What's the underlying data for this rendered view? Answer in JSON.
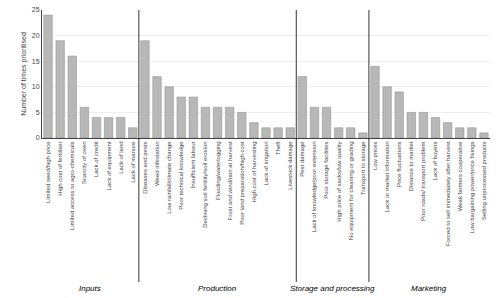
{
  "chart_data": {
    "type": "bar",
    "ylabel": "Number of times prioritised",
    "categories": [
      "Limited seed/high price",
      "High cost of fertiliser",
      "Limited access to agro-chemicals",
      "Scarcity of oxen",
      "Lack of credit",
      "Lack of equipment",
      "Lack of land",
      "Lack of manure",
      "Diseases and pests",
      "Weed infestation",
      "Low rainfall/climate change",
      "Poor technical knowledge",
      "Insufficient labour",
      "Declining soil fertility/soil erosion",
      "Flooding/waterlogging",
      "Frost and wind/rain at harvest",
      "Poor land preparation/high cost",
      "High cost of harvesting",
      "Lack of irrigation",
      "Theft",
      "Livestock damage",
      "Pest damage",
      "Lack of knowledge/poor extension",
      "Poor storage facilities",
      "High price of sacks/low quality",
      "No equipment for cleaning or grading",
      "Transport to storage",
      "Low prices",
      "Lack or market information",
      "Price fluctuations",
      "Distance to market",
      "Poor roads/ transport problem",
      "Lack of buyers",
      "Forced to sell immediately after harvest",
      "Weak farmers cooperative",
      "Low bargaining power/price fixings",
      "Selling unprocessed products"
    ],
    "values": [
      24,
      19,
      16,
      6,
      4,
      4,
      4,
      2,
      19,
      12,
      10,
      8,
      8,
      6,
      6,
      6,
      5,
      3,
      2,
      2,
      2,
      12,
      6,
      6,
      2,
      2,
      1,
      14,
      10,
      9,
      5,
      5,
      4,
      3,
      2,
      2,
      1
    ],
    "groups": [
      {
        "name": "Inputs",
        "start": 0,
        "end": 7
      },
      {
        "name": "Production",
        "start": 8,
        "end": 20
      },
      {
        "name": "Storage and processing",
        "start": 21,
        "end": 26
      },
      {
        "name": "Marketing",
        "start": 27,
        "end": 36
      }
    ],
    "color": "#b8b8b8",
    "ylim": [
      0,
      25
    ],
    "yticks": [
      0,
      5,
      10,
      15,
      20,
      25
    ],
    "grid": true
  }
}
